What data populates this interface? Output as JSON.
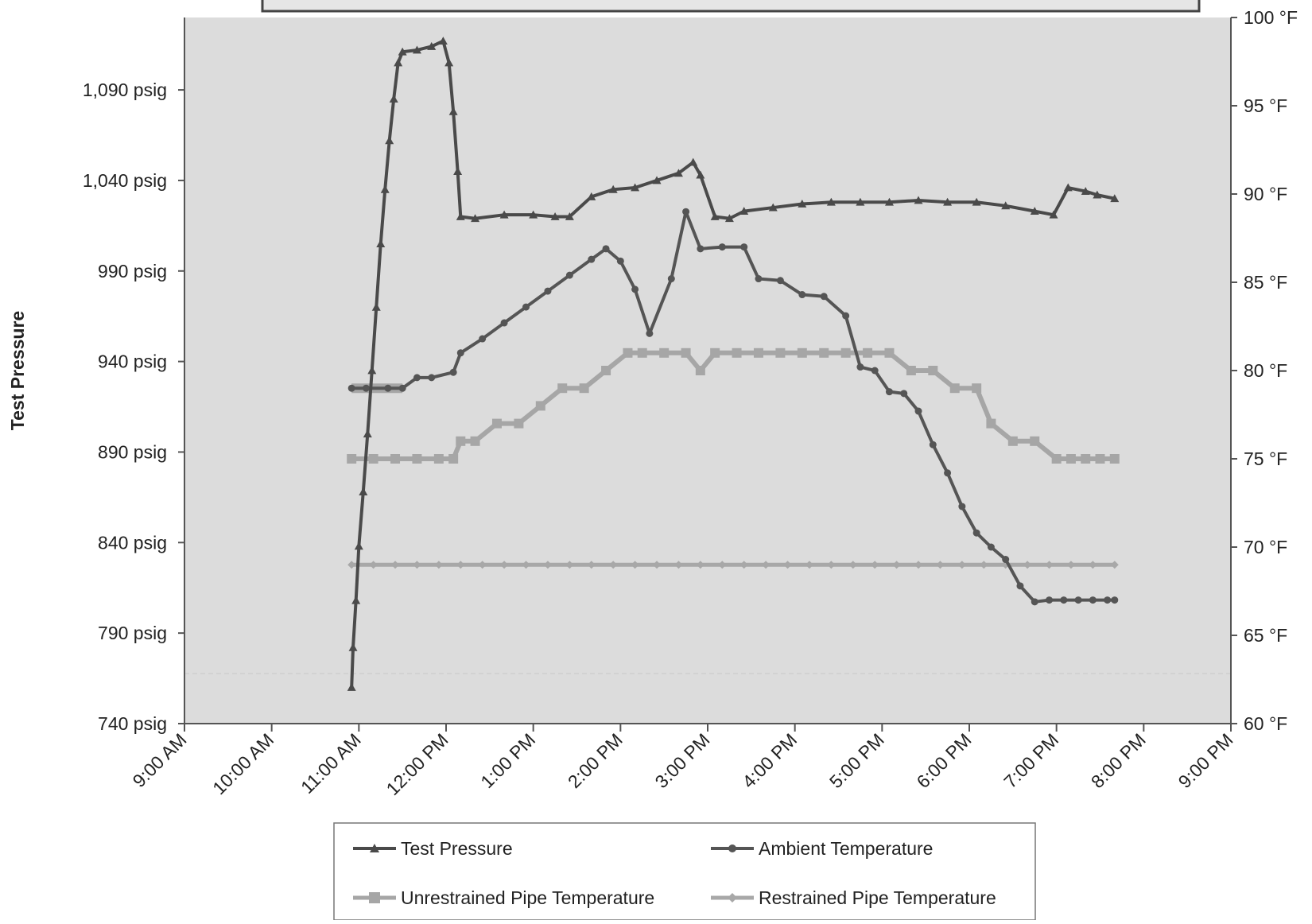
{
  "chart_data": {
    "type": "line",
    "title": "",
    "ylabel": "Test Pressure",
    "ylabel_right": "",
    "xlabel": "",
    "x_ticks": [
      "9:00 AM",
      "10:00 AM",
      "11:00 AM",
      "12:00 PM",
      "1:00 PM",
      "2:00 PM",
      "3:00 PM",
      "4:00 PM",
      "5:00 PM",
      "6:00 PM",
      "7:00 PM",
      "8:00 PM",
      "9:00 PM"
    ],
    "y_ticks": [
      "740 psig",
      "790 psig",
      "840 psig",
      "890 psig",
      "940 psig",
      "990 psig",
      "1,040 psig",
      "1,090 psig"
    ],
    "y2_ticks": [
      "60 °F",
      "65 °F",
      "70 °F",
      "75 °F",
      "80 °F",
      "85 °F",
      "90 °F",
      "95 °F",
      "100 °F"
    ],
    "x_range": [
      "9:00 AM",
      "9:00 PM"
    ],
    "ylim": [
      740,
      1130
    ],
    "y2lim": [
      60,
      100
    ],
    "grid": false,
    "legend_position": "bottom",
    "colors": {
      "plot_background": "#dcdcdc",
      "test_pressure": "#4a4a4a",
      "ambient": "#555555",
      "unrestrained": "#a6a6a6",
      "restrained": "#a8a8a8"
    },
    "series": [
      {
        "name": "Test Pressure",
        "axis": "left",
        "marker": "triangle",
        "x": [
          "10:55",
          "10:56",
          "10:58",
          "11:00",
          "11:03",
          "11:06",
          "11:09",
          "11:12",
          "11:15",
          "11:18",
          "11:21",
          "11:24",
          "11:27",
          "11:30",
          "11:40",
          "11:50",
          "11:58",
          "12:02",
          "12:05",
          "12:08",
          "12:10",
          "12:20",
          "12:40",
          "13:00",
          "13:15",
          "13:25",
          "13:40",
          "13:55",
          "14:10",
          "14:25",
          "14:40",
          "14:50",
          "14:55",
          "15:05",
          "15:15",
          "15:25",
          "15:45",
          "16:05",
          "16:25",
          "16:45",
          "17:05",
          "17:25",
          "17:45",
          "18:05",
          "18:25",
          "18:45",
          "18:58",
          "19:08",
          "19:20",
          "19:28",
          "19:40"
        ],
        "y": [
          760,
          782,
          808,
          838,
          868,
          900,
          935,
          970,
          1005,
          1035,
          1062,
          1085,
          1105,
          1111,
          1112,
          1114,
          1117,
          1105,
          1078,
          1045,
          1020,
          1019,
          1021,
          1021,
          1020,
          1020,
          1031,
          1035,
          1036,
          1040,
          1044,
          1050,
          1043,
          1020,
          1019,
          1023,
          1025,
          1027,
          1028,
          1028,
          1028,
          1029,
          1028,
          1028,
          1026,
          1023,
          1021,
          1036,
          1034,
          1032,
          1030
        ]
      },
      {
        "name": "Ambient Temperature",
        "axis": "right",
        "marker": "circle",
        "x": [
          "10:55",
          "11:05",
          "11:20",
          "11:30",
          "11:40",
          "11:50",
          "12:05",
          "12:10",
          "12:25",
          "12:40",
          "12:55",
          "13:10",
          "13:25",
          "13:40",
          "13:50",
          "14:00",
          "14:10",
          "14:20",
          "14:35",
          "14:45",
          "14:55",
          "15:10",
          "15:25",
          "15:35",
          "15:50",
          "16:05",
          "16:20",
          "16:35",
          "16:45",
          "16:55",
          "17:05",
          "17:15",
          "17:25",
          "17:35",
          "17:45",
          "17:55",
          "18:05",
          "18:15",
          "18:25",
          "18:35",
          "18:45",
          "18:55",
          "19:05",
          "19:15",
          "19:25",
          "19:35",
          "19:40"
        ],
        "y": [
          79,
          79,
          79,
          79,
          79.6,
          79.6,
          79.9,
          81,
          81.8,
          82.7,
          83.6,
          84.5,
          85.4,
          86.3,
          86.9,
          86.2,
          84.6,
          82.1,
          85.2,
          89,
          86.9,
          87,
          87,
          85.2,
          85.1,
          84.3,
          84.2,
          83.1,
          80.2,
          80,
          78.8,
          78.7,
          77.7,
          75.8,
          74.2,
          72.3,
          70.8,
          70,
          69.3,
          67.8,
          66.9,
          67,
          67,
          67,
          67,
          67,
          67
        ]
      },
      {
        "name": "Unrestrained Pipe Temperature",
        "axis": "right",
        "marker": "square",
        "x": [
          "10:55",
          "11:10",
          "11:25",
          "11:40",
          "11:55",
          "12:05",
          "12:10",
          "12:20",
          "12:35",
          "12:50",
          "13:05",
          "13:20",
          "13:35",
          "13:50",
          "14:05",
          "14:15",
          "14:30",
          "14:45",
          "14:55",
          "15:05",
          "15:20",
          "15:35",
          "15:50",
          "16:05",
          "16:20",
          "16:35",
          "16:50",
          "17:05",
          "17:20",
          "17:35",
          "17:50",
          "18:05",
          "18:15",
          "18:30",
          "18:45",
          "19:00",
          "19:10",
          "19:20",
          "19:30",
          "19:40"
        ],
        "y": [
          75,
          75,
          75,
          75,
          75,
          75,
          76,
          76,
          77,
          77,
          78,
          79,
          79,
          80,
          81,
          81,
          81,
          81,
          80,
          81,
          81,
          81,
          81,
          81,
          81,
          81,
          81,
          81,
          80,
          80,
          79,
          79,
          77,
          76,
          76,
          75,
          75,
          75,
          75,
          75
        ],
        "secondary_level": {
          "name": "Unrestrained Pipe Temperature",
          "x": [
            "10:55",
            "11:30"
          ],
          "y": [
            79,
            79
          ]
        }
      },
      {
        "name": "Restrained Pipe Temperature",
        "axis": "right",
        "marker": "diamond",
        "x": [
          "10:55",
          "11:10",
          "11:25",
          "11:40",
          "11:55",
          "12:10",
          "12:25",
          "12:40",
          "12:55",
          "13:10",
          "13:25",
          "13:40",
          "13:55",
          "14:10",
          "14:25",
          "14:40",
          "14:55",
          "15:10",
          "15:25",
          "15:40",
          "15:55",
          "16:10",
          "16:25",
          "16:40",
          "16:55",
          "17:10",
          "17:25",
          "17:40",
          "17:55",
          "18:10",
          "18:25",
          "18:40",
          "18:55",
          "19:10",
          "19:25",
          "19:40"
        ],
        "y": [
          69,
          69,
          69,
          69,
          69,
          69,
          69,
          69,
          69,
          69,
          69,
          69,
          69,
          69,
          69,
          69,
          69,
          69,
          69,
          69,
          69,
          69,
          69,
          69,
          69,
          69,
          69,
          69,
          69,
          69,
          69,
          69,
          69,
          69,
          69,
          69
        ]
      }
    ]
  },
  "legend": {
    "items": [
      {
        "label": "Test Pressure",
        "marker": "triangle",
        "color": "#4a4a4a"
      },
      {
        "label": "Ambient Temperature",
        "marker": "circle",
        "color": "#555555"
      },
      {
        "label": "Unrestrained Pipe Temperature",
        "marker": "square",
        "color": "#a6a6a6"
      },
      {
        "label": "Restrained Pipe Temperature",
        "marker": "diamond",
        "color": "#a8a8a8"
      }
    ]
  }
}
